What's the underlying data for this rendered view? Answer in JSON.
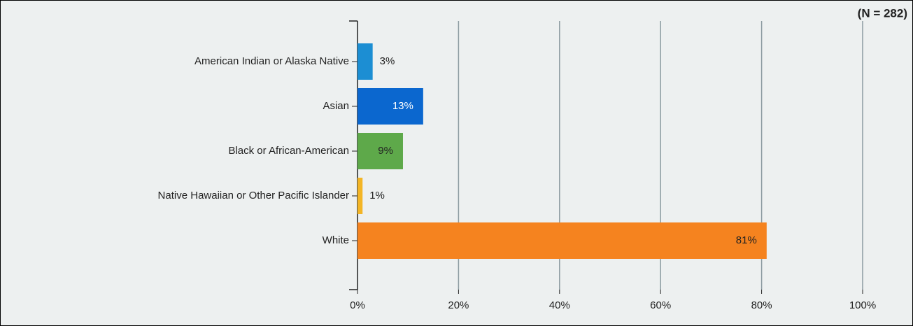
{
  "chart_data": {
    "type": "bar",
    "orientation": "horizontal",
    "annotation": "(N = 282)",
    "categories": [
      "American Indian or Alaska Native",
      "Asian",
      "Black or African-American",
      "Native Hawaiian or Other Pacific Islander",
      "White"
    ],
    "values": [
      3,
      13,
      9,
      1,
      81
    ],
    "value_labels": [
      "3%",
      "13%",
      "9%",
      "1%",
      "81%"
    ],
    "colors": [
      "#1c8ed3",
      "#0b67cf",
      "#5ea94a",
      "#f3b526",
      "#f5831f"
    ],
    "label_colors": [
      "#222222",
      "#ffffff",
      "#222222",
      "#222222",
      "#222222"
    ],
    "xlim": [
      0,
      100
    ],
    "xticks": [
      {
        "value": 0,
        "label": "0%"
      },
      {
        "value": 20,
        "label": "20%"
      },
      {
        "value": 40,
        "label": "40%"
      },
      {
        "value": 60,
        "label": "60%"
      },
      {
        "value": 80,
        "label": "80%"
      },
      {
        "value": 100,
        "label": "100%"
      }
    ],
    "grid": true
  }
}
